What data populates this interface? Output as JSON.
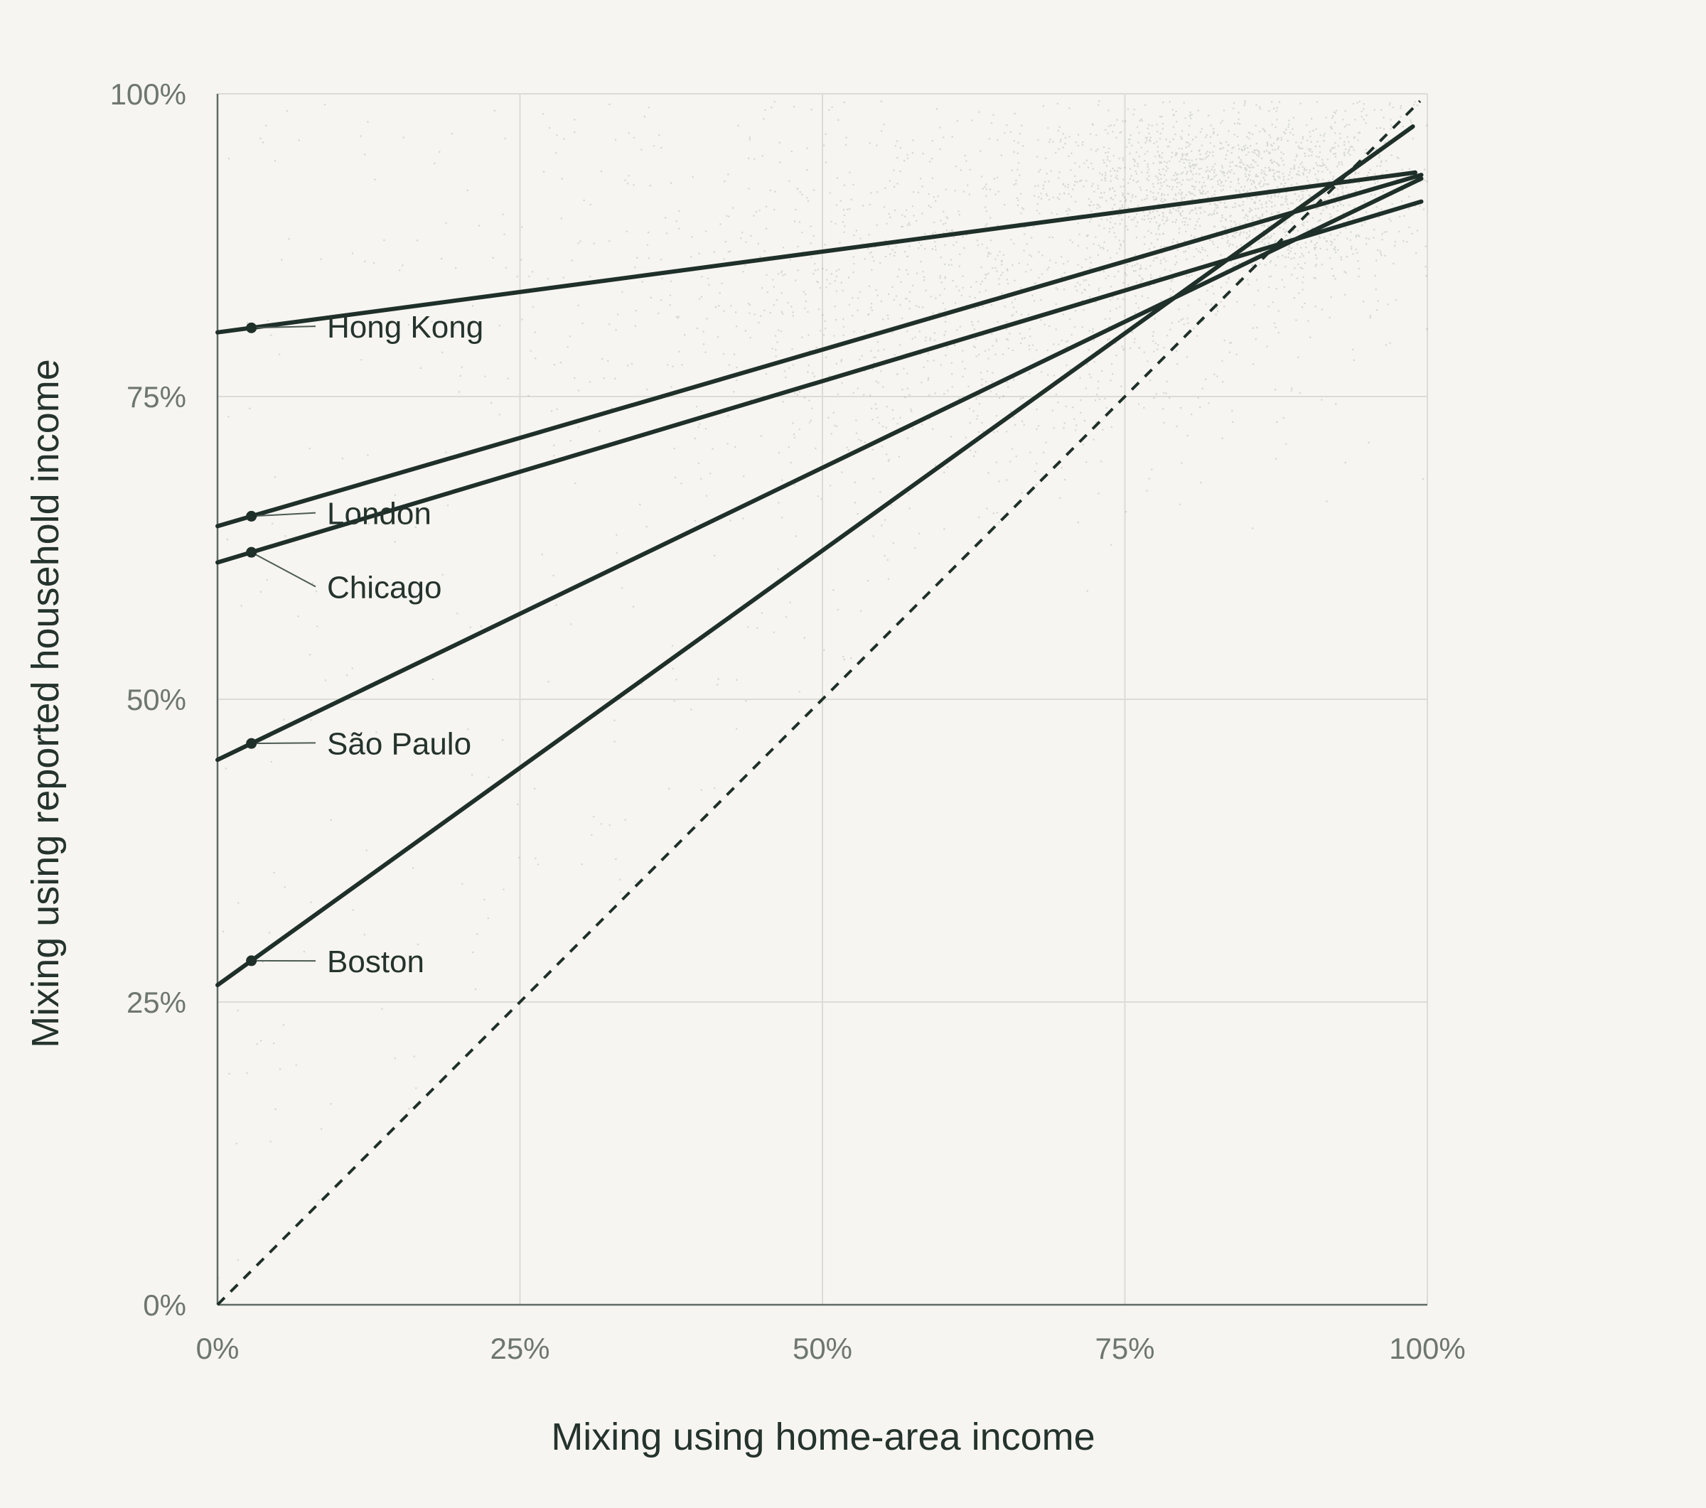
{
  "chart_data": {
    "type": "scatter",
    "xlabel": "Mixing using home-area income",
    "ylabel": "Mixing using reported household income",
    "xlim": [
      0,
      100
    ],
    "ylim": [
      0,
      100
    ],
    "x_ticks": [
      "0%",
      "25%",
      "50%",
      "75%",
      "100%"
    ],
    "y_ticks": [
      "0%",
      "25%",
      "50%",
      "75%",
      "100%"
    ],
    "tick_values": [
      0,
      25,
      50,
      75,
      100
    ],
    "grid": true,
    "reference_line": {
      "style": "dashed",
      "x": [
        0,
        99.4
      ],
      "y": [
        0,
        99.4
      ]
    },
    "background_points": {
      "description_density_center": [
        85,
        93
      ],
      "color": "#5f7468"
    },
    "series": [
      {
        "name": "Hong Kong",
        "x": [
          0,
          99
        ],
        "y": [
          80.3,
          93.5
        ],
        "marker_x": 2.8,
        "label_y": 80.8
      },
      {
        "name": "London",
        "x": [
          0,
          99.5
        ],
        "y": [
          64.3,
          93.3
        ],
        "marker_x": 2.8,
        "label_y": 65.4
      },
      {
        "name": "Chicago",
        "x": [
          0,
          99.5
        ],
        "y": [
          61.3,
          91.1
        ],
        "marker_x": 2.8,
        "label_y": 59.3
      },
      {
        "name": "São Paulo",
        "x": [
          0,
          99.5
        ],
        "y": [
          45.0,
          93.0
        ],
        "marker_x": 2.8,
        "label_y": 46.4
      },
      {
        "name": "Boston",
        "x": [
          0,
          98.8
        ],
        "y": [
          26.4,
          97.3
        ],
        "marker_x": 2.8,
        "label_y": 28.4
      }
    ]
  },
  "colors": {
    "background": "#f6f5f1",
    "line": "#1f2f29",
    "points": "#5f7468"
  }
}
